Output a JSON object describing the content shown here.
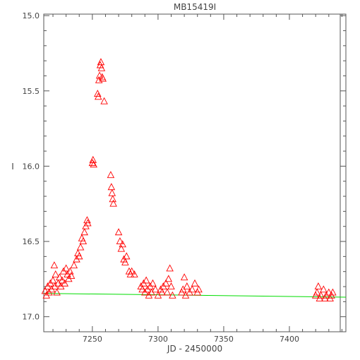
{
  "chart_data": {
    "type": "scatter",
    "title": "MB15419I",
    "xlabel": "JD - 2450000",
    "ylabel": "I",
    "xlim": [
      7213,
      7443
    ],
    "ylim": [
      17.1,
      14.99
    ],
    "y_inverted": true,
    "x_ticks": [
      7250,
      7300,
      7350,
      7400
    ],
    "y_ticks": [
      15.0,
      15.5,
      16.0,
      16.5,
      17.0
    ],
    "y_tick_labels": [
      "15.0",
      "15.5",
      "16.0",
      "16.5",
      "17.0"
    ],
    "marker": "open-triangle",
    "colors": {
      "points": "#ff0000",
      "baseline": "#00dd00",
      "axes": "#555555"
    },
    "baseline": {
      "x": [
        7213,
        7443
      ],
      "y": [
        16.845,
        16.87
      ]
    },
    "series": [
      {
        "values": [
          [
            7214,
            16.83
          ],
          [
            7215,
            16.86
          ],
          [
            7216,
            16.8
          ],
          [
            7217,
            16.84
          ],
          [
            7218,
            16.78
          ],
          [
            7219,
            16.82
          ],
          [
            7220,
            16.76
          ],
          [
            7221,
            16.66
          ],
          [
            7221.5,
            16.8
          ],
          [
            7222,
            16.72
          ],
          [
            7223,
            16.84
          ],
          [
            7224,
            16.78
          ],
          [
            7225,
            16.74
          ],
          [
            7226,
            16.8
          ],
          [
            7227,
            16.76
          ],
          [
            7228,
            16.7
          ],
          [
            7229,
            16.78
          ],
          [
            7230,
            16.68
          ],
          [
            7231,
            16.72
          ],
          [
            7232,
            16.75
          ],
          [
            7233,
            16.7
          ],
          [
            7234,
            16.73
          ],
          [
            7236,
            16.66
          ],
          [
            7238,
            16.62
          ],
          [
            7239,
            16.58
          ],
          [
            7240,
            16.6
          ],
          [
            7241,
            16.54
          ],
          [
            7242,
            16.48
          ],
          [
            7243,
            16.5
          ],
          [
            7244,
            16.44
          ],
          [
            7245,
            16.4
          ],
          [
            7246,
            16.36
          ],
          [
            7246.5,
            16.38
          ],
          [
            7250,
            15.98
          ],
          [
            7250.5,
            15.96
          ],
          [
            7251,
            15.99
          ],
          [
            7254,
            15.52
          ],
          [
            7254.5,
            15.54
          ],
          [
            7255,
            15.43
          ],
          [
            7255.5,
            15.4
          ],
          [
            7256,
            15.33
          ],
          [
            7256.5,
            15.31
          ],
          [
            7257,
            15.35
          ],
          [
            7257.5,
            15.41
          ],
          [
            7258,
            15.42
          ],
          [
            7259,
            15.57
          ],
          [
            7264,
            16.06
          ],
          [
            7264.5,
            16.14
          ],
          [
            7265,
            16.18
          ],
          [
            7265.5,
            16.22
          ],
          [
            7266,
            16.25
          ],
          [
            7270,
            16.44
          ],
          [
            7271,
            16.5
          ],
          [
            7272,
            16.55
          ],
          [
            7273,
            16.52
          ],
          [
            7274,
            16.62
          ],
          [
            7275,
            16.64
          ],
          [
            7276,
            16.6
          ],
          [
            7278,
            16.7
          ],
          [
            7279,
            16.72
          ],
          [
            7280,
            16.7
          ],
          [
            7282,
            16.72
          ],
          [
            7287,
            16.8
          ],
          [
            7288,
            16.82
          ],
          [
            7289,
            16.78
          ],
          [
            7290,
            16.84
          ],
          [
            7291,
            16.76
          ],
          [
            7292,
            16.82
          ],
          [
            7293,
            16.86
          ],
          [
            7294,
            16.8
          ],
          [
            7295,
            16.84
          ],
          [
            7296,
            16.78
          ],
          [
            7298,
            16.82
          ],
          [
            7300,
            16.86
          ],
          [
            7302,
            16.82
          ],
          [
            7303,
            16.84
          ],
          [
            7304,
            16.8
          ],
          [
            7306,
            16.78
          ],
          [
            7307,
            16.84
          ],
          [
            7308,
            16.75
          ],
          [
            7309,
            16.68
          ],
          [
            7310,
            16.8
          ],
          [
            7311,
            16.86
          ],
          [
            7318,
            16.84
          ],
          [
            7319,
            16.82
          ],
          [
            7320,
            16.74
          ],
          [
            7321,
            16.86
          ],
          [
            7322,
            16.8
          ],
          [
            7324,
            16.84
          ],
          [
            7326,
            16.82
          ],
          [
            7328,
            16.78
          ],
          [
            7330,
            16.84
          ],
          [
            7331,
            16.82
          ],
          [
            7420,
            16.86
          ],
          [
            7421,
            16.84
          ],
          [
            7422,
            16.8
          ],
          [
            7423,
            16.88
          ],
          [
            7424,
            16.86
          ],
          [
            7426,
            16.82
          ],
          [
            7427,
            16.88
          ],
          [
            7428,
            16.86
          ],
          [
            7430,
            16.84
          ],
          [
            7431,
            16.88
          ],
          [
            7432,
            16.86
          ],
          [
            7433,
            16.84
          ]
        ]
      }
    ]
  }
}
